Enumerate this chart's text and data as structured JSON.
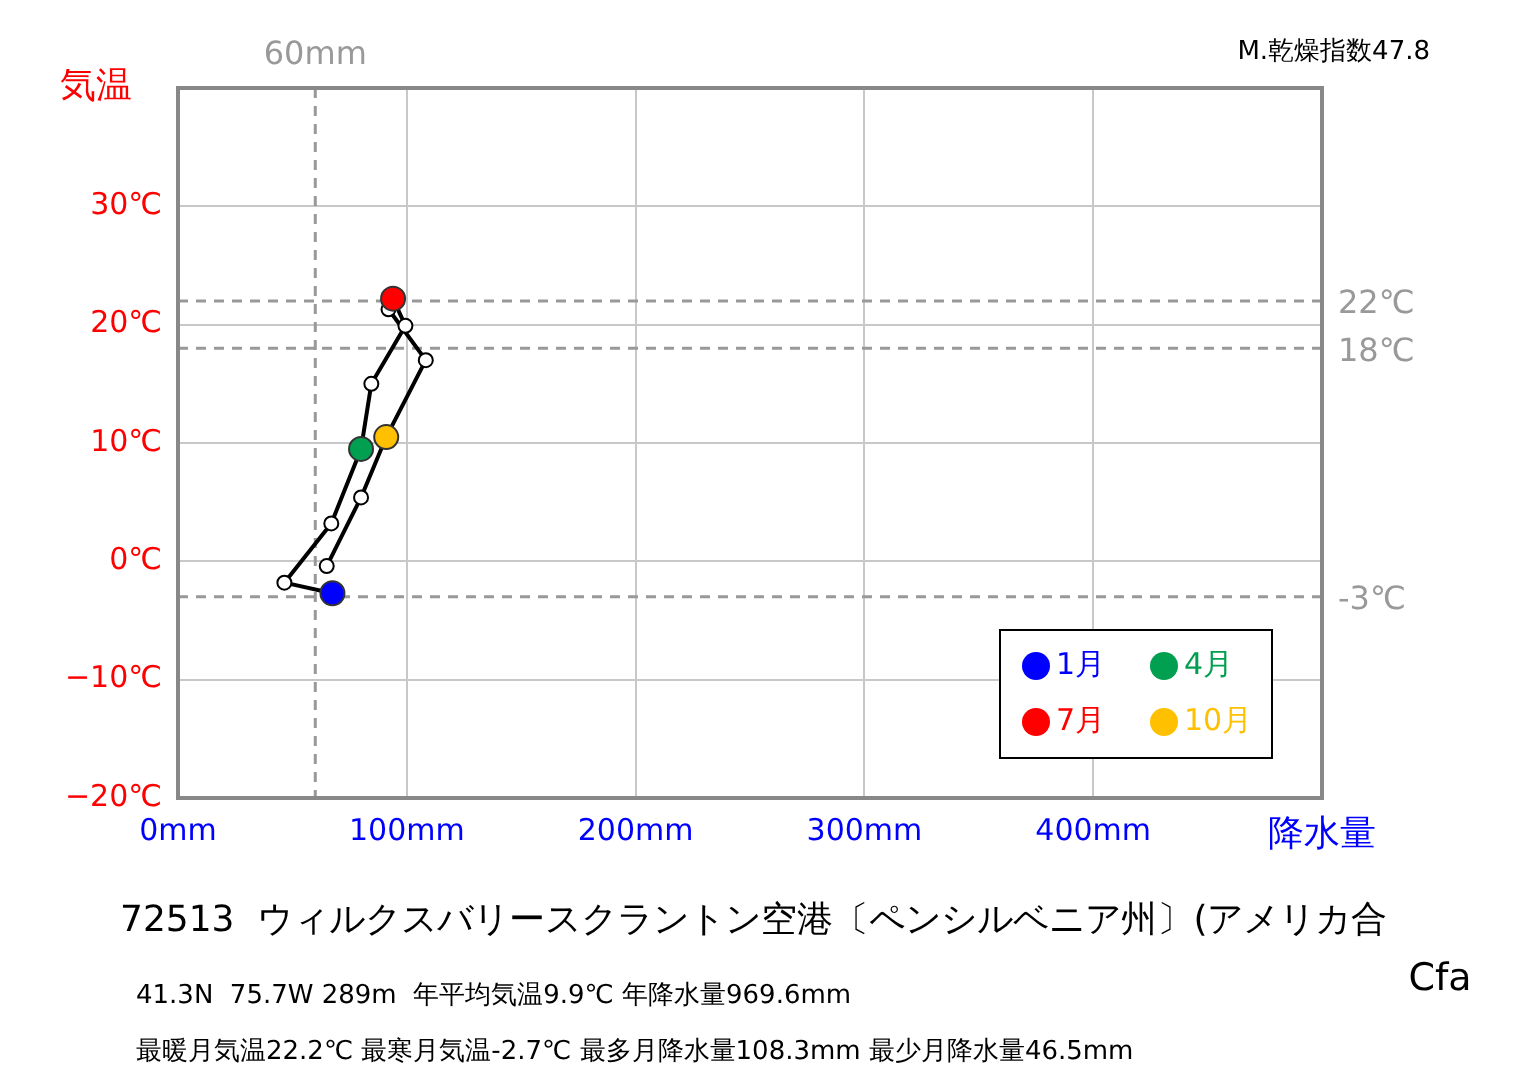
{
  "chart_data": {
    "type": "line",
    "title": "72513  ウィルクスバリースクラントン空港〔ペンシルベニア州〕(アメリカ合",
    "ylabel": "気温",
    "xlabel": "降水量",
    "xlim": [
      0,
      500
    ],
    "xticks": [
      {
        "value": 0,
        "label": "0mm"
      },
      {
        "value": 100,
        "label": "100mm"
      },
      {
        "value": 200,
        "label": "200mm"
      },
      {
        "value": 300,
        "label": "300mm"
      },
      {
        "value": 400,
        "label": "400mm"
      },
      {
        "value": 500,
        "label": null
      }
    ],
    "ylim": [
      -20,
      40
    ],
    "yticks": [
      {
        "value": -20,
        "label": "−20℃"
      },
      {
        "value": -10,
        "label": "−10℃"
      },
      {
        "value": 0,
        "label": "0℃"
      },
      {
        "value": 10,
        "label": "10℃"
      },
      {
        "value": 20,
        "label": "20℃"
      },
      {
        "value": 30,
        "label": "30℃"
      },
      {
        "value": 40,
        "label": null
      }
    ],
    "grid": true,
    "legend": "bottom right",
    "marker": "circle",
    "line_style": "solid",
    "series": [
      {
        "color": "#000000",
        "x": [
          67.5,
          46.5,
          67,
          80,
          84.5,
          99.4,
          94,
          92,
          108.3,
          91,
          80,
          65
        ],
        "values": [
          -2.7,
          -1.8,
          3.2,
          9.5,
          15.0,
          19.9,
          22.2,
          21.3,
          17.0,
          10.5,
          5.4,
          -0.4
        ]
      },
      {
        "type": "scatter",
        "name": "1月",
        "color": "#0000ff",
        "x": [
          67.5
        ],
        "values": [
          -2.7
        ]
      },
      {
        "type": "scatter",
        "name": "4月",
        "color": "#00a050",
        "x": [
          80
        ],
        "values": [
          9.5
        ]
      },
      {
        "type": "scatter",
        "name": "7月",
        "color": "#ff0000",
        "x": [
          94
        ],
        "values": [
          22.2
        ]
      },
      {
        "type": "scatter",
        "name": "10月",
        "color": "#ffc000",
        "x": [
          91
        ],
        "values": [
          10.5
        ]
      }
    ],
    "ref_lines": [
      {
        "axis": "y",
        "value": 22,
        "label": "22℃",
        "color": "#999999",
        "line_style": "dashed"
      },
      {
        "axis": "y",
        "value": 18,
        "label": "18℃",
        "color": "#999999",
        "line_style": "dashed"
      },
      {
        "axis": "y",
        "value": -3,
        "label": "-3℃",
        "color": "#999999",
        "line_style": "dashed"
      },
      {
        "axis": "x",
        "value": 60,
        "label": "60mm",
        "color": "#999999",
        "line_style": "dashed"
      }
    ],
    "annotations": [
      "M.乾燥指数47.8",
      "41.3N  75.7W 289m  年平均気温9.9℃ 年降水量969.6mm",
      "最暖月気温22.2℃ 最寒月気温-2.7℃ 最多月降水量108.3mm 最少月降水量46.5mm",
      "Cfa"
    ]
  }
}
